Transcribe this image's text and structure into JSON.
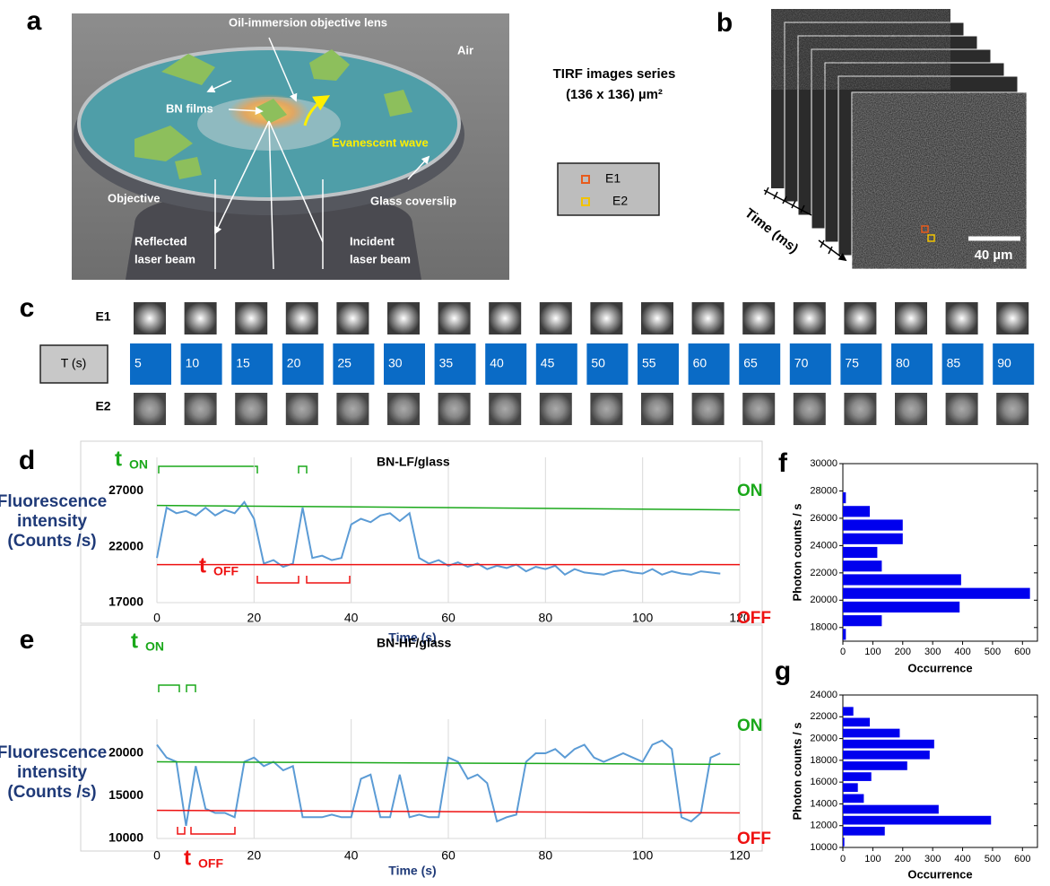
{
  "panel_labels": [
    "a",
    "b",
    "c",
    "d",
    "e",
    "f",
    "g"
  ],
  "panel_a": {
    "lens": "Oil-immersion objective lens",
    "air": "Air",
    "films": "BN films",
    "wave": "Evanescent wave",
    "objective": "Objective",
    "coverslip": "Glass coverslip",
    "reflected": [
      "Reflected",
      "laser beam"
    ],
    "incident": [
      "Incident",
      "laser beam"
    ]
  },
  "panel_b": {
    "title": [
      "TIRF images series",
      "(136 x 136) µm²"
    ],
    "axis": "Time (ms)",
    "scale_bar": "40 µm",
    "legend": [
      "E1",
      "E2"
    ]
  },
  "panel_c": {
    "rows": [
      "E1",
      "E2"
    ],
    "time_label": "T (s)",
    "times": [
      5,
      10,
      15,
      20,
      25,
      30,
      35,
      40,
      45,
      50,
      55,
      60,
      65,
      70,
      75,
      80,
      85,
      90
    ]
  },
  "chart_data": [
    {
      "type": "line",
      "title": "BN-LF/glass",
      "x_label": "Time (s)",
      "y_label": [
        "Fluorescence",
        "intensity",
        "(Counts /s)"
      ],
      "x": [
        0,
        2,
        4,
        6,
        8,
        10,
        12,
        14,
        16,
        18,
        20,
        22,
        24,
        26,
        28,
        30,
        32,
        34,
        36,
        38,
        40,
        42,
        44,
        46,
        48,
        50,
        52,
        54,
        56,
        58,
        60,
        62,
        64,
        66,
        68,
        70,
        72,
        74,
        76,
        78,
        80,
        82,
        84,
        86,
        88,
        90,
        92,
        94,
        96,
        98,
        100,
        102,
        104,
        106,
        108,
        110,
        112,
        114,
        116
      ],
      "values": [
        21000,
        25500,
        25000,
        25200,
        24800,
        25500,
        24800,
        25300,
        25000,
        26000,
        24500,
        20500,
        20800,
        20200,
        20500,
        25500,
        21000,
        21200,
        20800,
        21000,
        24000,
        24500,
        24200,
        24800,
        25000,
        24300,
        25000,
        21000,
        20500,
        20800,
        20300,
        20600,
        20200,
        20500,
        20000,
        20300,
        20100,
        20400,
        19800,
        20200,
        20000,
        20300,
        19500,
        20000,
        19700,
        19600,
        19500,
        19800,
        19900,
        19700,
        19600,
        20000,
        19500,
        19800,
        19600,
        19500,
        19800,
        19700,
        19600
      ],
      "color": "#5b9bd5",
      "xlim": [
        0,
        120
      ],
      "ylim": [
        17000,
        30000
      ],
      "xticks": [
        0,
        20,
        40,
        60,
        80,
        100,
        120
      ],
      "yticks": [
        17000,
        22000,
        27000
      ],
      "grid": "x",
      "fit_lines": [
        {
          "name": "ON",
          "color": "#1aa81a",
          "x": [
            0,
            120
          ],
          "values": [
            25700,
            25300
          ]
        },
        {
          "name": "OFF",
          "color": "#ee1111",
          "x": [
            0,
            120
          ],
          "values": [
            20400,
            20400
          ]
        }
      ],
      "annotations": {
        "t_on": [
          "t",
          "ON"
        ],
        "t_off": [
          "t",
          "OFF"
        ]
      }
    },
    {
      "type": "line",
      "title": "BN-HF/glass",
      "x_label": "Time (s)",
      "y_label": [
        "Fluorescence",
        "intensity",
        "(Counts /s)"
      ],
      "x": [
        0,
        2,
        4,
        6,
        8,
        10,
        12,
        14,
        16,
        18,
        20,
        22,
        24,
        26,
        28,
        30,
        32,
        34,
        36,
        38,
        40,
        42,
        44,
        46,
        48,
        50,
        52,
        54,
        56,
        58,
        60,
        62,
        64,
        66,
        68,
        70,
        72,
        74,
        76,
        78,
        80,
        82,
        84,
        86,
        88,
        90,
        92,
        94,
        96,
        98,
        100,
        102,
        104,
        106,
        108,
        110,
        112,
        114,
        116
      ],
      "values": [
        21000,
        19500,
        19000,
        11500,
        18500,
        13500,
        13000,
        13000,
        12500,
        19000,
        19500,
        18500,
        19000,
        18000,
        18500,
        12500,
        12500,
        12500,
        12800,
        12500,
        12500,
        17000,
        17500,
        12500,
        12500,
        17500,
        12500,
        12800,
        12500,
        12500,
        19500,
        19000,
        17000,
        17500,
        16500,
        12000,
        12500,
        12800,
        19000,
        20000,
        20000,
        20500,
        19500,
        20500,
        21000,
        19500,
        19000,
        19500,
        20000,
        19500,
        19000,
        21000,
        21500,
        20500,
        12500,
        12000,
        13000,
        19500,
        20000
      ],
      "color": "#5b9bd5",
      "xlim": [
        0,
        120
      ],
      "ylim": [
        10000,
        24000
      ],
      "xticks": [
        0,
        20,
        40,
        60,
        80,
        100,
        120
      ],
      "yticks": [
        10000,
        15000,
        20000
      ],
      "grid": "x",
      "fit_lines": [
        {
          "name": "ON",
          "color": "#1aa81a",
          "x": [
            0,
            120
          ],
          "values": [
            19000,
            18700
          ]
        },
        {
          "name": "OFF",
          "color": "#ee1111",
          "x": [
            0,
            120
          ],
          "values": [
            13300,
            13000
          ]
        }
      ],
      "annotations": {
        "t_on": [
          "t",
          "ON"
        ],
        "t_off": [
          "t",
          "OFF"
        ]
      }
    },
    {
      "type": "histogram",
      "x_label": "Occurrence",
      "y_label": "Photon counts / s",
      "bins": [
        17000,
        18000,
        19000,
        20000,
        21000,
        22000,
        23000,
        24000,
        25000,
        26000,
        27000,
        28000,
        29000
      ],
      "values": [
        10,
        130,
        390,
        625,
        395,
        130,
        115,
        200,
        200,
        90,
        10,
        0
      ],
      "color": "#0000ee",
      "xlim": [
        0,
        650
      ],
      "ylim": [
        17000,
        30000
      ],
      "xticks": [
        0,
        100,
        200,
        300,
        400,
        500,
        600
      ],
      "yticks": [
        18000,
        20000,
        22000,
        24000,
        26000,
        28000,
        30000
      ]
    },
    {
      "type": "histogram",
      "x_label": "Occurrence",
      "y_label": "Photon counts / s",
      "bins": [
        10000,
        11000,
        12000,
        13000,
        14000,
        15000,
        16000,
        17000,
        18000,
        19000,
        20000,
        21000,
        22000,
        23000,
        24000
      ],
      "values": [
        5,
        140,
        495,
        320,
        70,
        50,
        95,
        215,
        290,
        305,
        190,
        90,
        35,
        0
      ],
      "color": "#0000ee",
      "xlim": [
        0,
        650
      ],
      "ylim": [
        10000,
        24000
      ],
      "xticks": [
        0,
        100,
        200,
        300,
        400,
        500,
        600
      ],
      "yticks": [
        10000,
        12000,
        14000,
        16000,
        18000,
        20000,
        22000,
        24000
      ]
    }
  ]
}
